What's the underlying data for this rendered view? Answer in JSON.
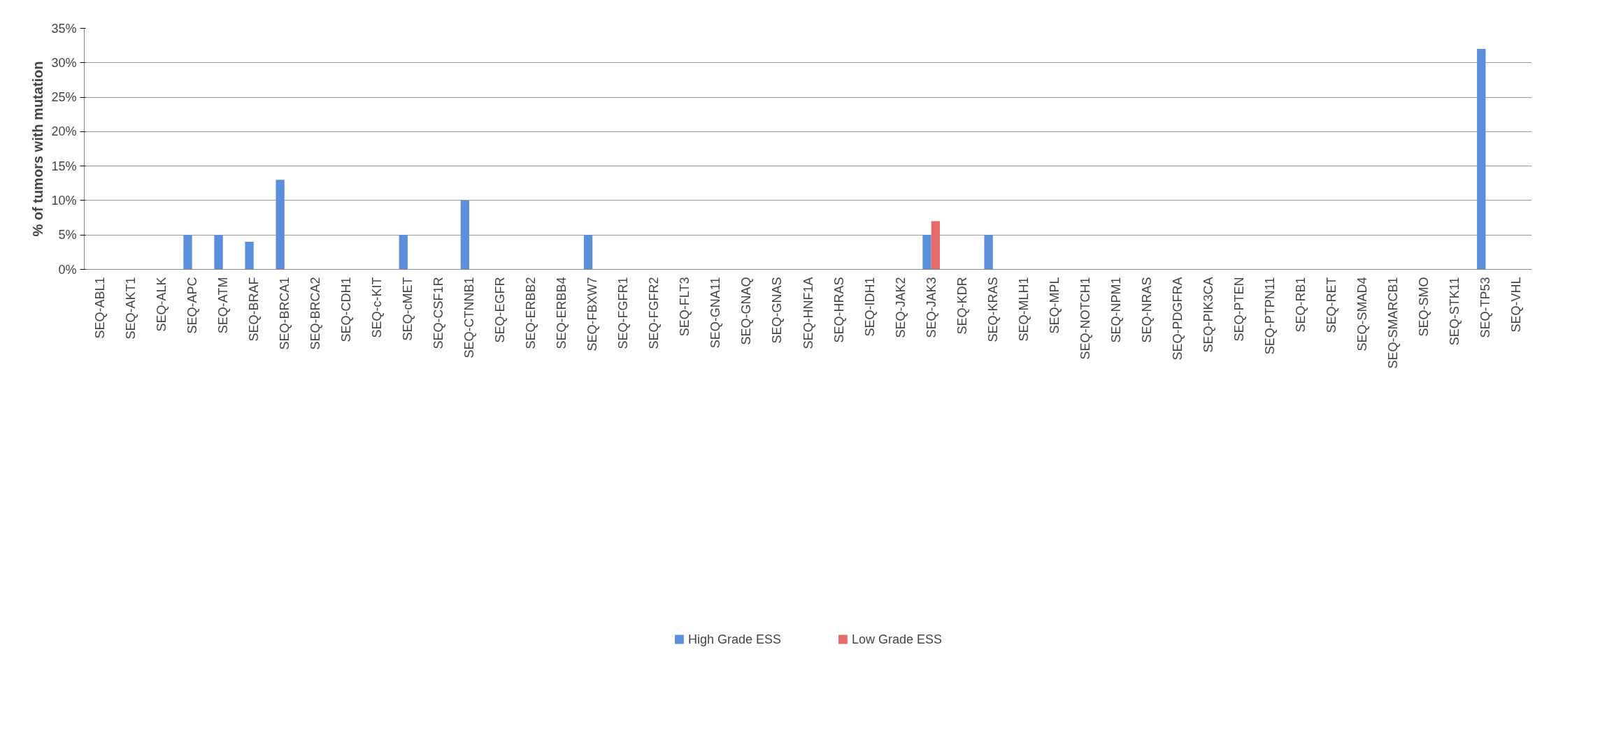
{
  "chart_data": {
    "type": "bar",
    "ylabel": "% of tumors with mutation",
    "categories": [
      "SEQ-ABL1",
      "SEQ-AKT1",
      "SEQ-ALK",
      "SEQ-APC",
      "SEQ-ATM",
      "SEQ-BRAF",
      "SEQ-BRCA1",
      "SEQ-BRCA2",
      "SEQ-CDH1",
      "SEQ-c-KIT",
      "SEQ-cMET",
      "SEQ-CSF1R",
      "SEQ-CTNNB1",
      "SEQ-EGFR",
      "SEQ-ERBB2",
      "SEQ-ERBB4",
      "SEQ-FBXW7",
      "SEQ-FGFR1",
      "SEQ-FGFR2",
      "SEQ-FLT3",
      "SEQ-GNA11",
      "SEQ-GNAQ",
      "SEQ-GNAS",
      "SEQ-HNF1A",
      "SEQ-HRAS",
      "SEQ-IDH1",
      "SEQ-JAK2",
      "SEQ-JAK3",
      "SEQ-KDR",
      "SEQ-KRAS",
      "SEQ-MLH1",
      "SEQ-MPL",
      "SEQ-NOTCH1",
      "SEQ-NPM1",
      "SEQ-NRAS",
      "SEQ-PDGFRA",
      "SEQ-PIK3CA",
      "SEQ-PTEN",
      "SEQ-PTPN11",
      "SEQ-RB1",
      "SEQ-RET",
      "SEQ-SMAD4",
      "SEQ-SMARCB1",
      "SEQ-SMO",
      "SEQ-STK11",
      "SEQ-TP53",
      "SEQ-VHL"
    ],
    "series": [
      {
        "name": "High Grade ESS",
        "color": "#5b8fdb",
        "values": [
          0,
          0,
          0,
          5,
          5,
          4,
          13,
          0,
          0,
          0,
          5,
          0,
          10,
          0,
          0,
          0,
          5,
          0,
          0,
          0,
          0,
          0,
          0,
          0,
          0,
          0,
          0,
          5,
          0,
          5,
          0,
          0,
          0,
          0,
          0,
          0,
          0,
          0,
          0,
          0,
          0,
          0,
          0,
          0,
          0,
          32,
          0
        ]
      },
      {
        "name": "Low Grade ESS",
        "color": "#e86b6b",
        "values": [
          0,
          0,
          0,
          0,
          0,
          0,
          0,
          0,
          0,
          0,
          0,
          0,
          0,
          0,
          0,
          0,
          0,
          0,
          0,
          0,
          0,
          0,
          0,
          0,
          0,
          0,
          0,
          7,
          0,
          0,
          0,
          0,
          0,
          0,
          0,
          0,
          0,
          0,
          0,
          0,
          0,
          0,
          0,
          0,
          0,
          0,
          0
        ]
      }
    ],
    "ylim": [
      0,
      35
    ],
    "yticks": [
      {
        "value": 0,
        "label": "0%"
      },
      {
        "value": 5,
        "label": "5%"
      },
      {
        "value": 10,
        "label": "10%"
      },
      {
        "value": 15,
        "label": "15%"
      },
      {
        "value": 20,
        "label": "20%"
      },
      {
        "value": 25,
        "label": "25%"
      },
      {
        "value": 30,
        "label": "30%"
      },
      {
        "value": 35,
        "label": "35%"
      }
    ],
    "grid": "y",
    "legend": "bottom"
  }
}
